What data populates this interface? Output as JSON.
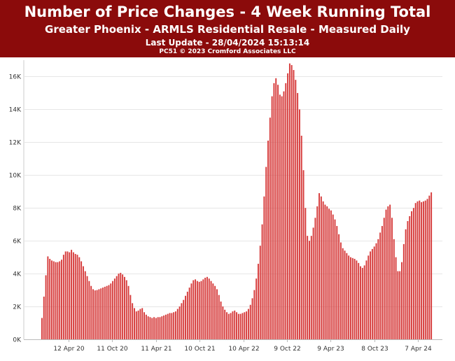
{
  "header": {
    "title": "Number of Price Changes - 4 Week Running Total",
    "subtitle": "Greater Phoenix - ARMLS Residential Resale - Measured Daily",
    "last_update": "Last Update - 28/04/2024 15:13:14",
    "credit": "PC51 © 2023 Cromford Associates LLC"
  },
  "colors": {
    "header_bg": "#8b0b0b",
    "bar_fill": "#d63a3a",
    "bar_edge": "#a31616",
    "grid": "#e6e6e6"
  },
  "chart_data": {
    "type": "bar",
    "title": "Number of Price Changes - 4 Week Running Total",
    "xlabel": "",
    "ylabel": "",
    "ylim": [
      0,
      17000
    ],
    "y_ticks": [
      "0K",
      "2K",
      "4K",
      "6K",
      "8K",
      "10K",
      "12K",
      "14K",
      "16K"
    ],
    "x_ticks": [
      "12 Apr 20",
      "11 Oct 20",
      "11 Apr 21",
      "10 Oct 21",
      "10 Apr 22",
      "9 Oct 22",
      "9 Apr 23",
      "8 Oct 23",
      "7 Apr 24"
    ],
    "grid": true,
    "series": [
      {
        "values": [
          1300,
          2600,
          3900,
          5050,
          4900,
          4800,
          4750,
          4700,
          4700,
          4750,
          4850,
          5150,
          5350,
          5350,
          5300,
          5450,
          5300,
          5200,
          5150,
          5000,
          4750,
          4450,
          4150,
          3850,
          3550,
          3250,
          3050,
          2980,
          3000,
          3050,
          3100,
          3150,
          3200,
          3250,
          3300,
          3400,
          3550,
          3700,
          3850,
          4000,
          4050,
          3950,
          3800,
          3600,
          3250,
          2700,
          2200,
          1900,
          1700,
          1750,
          1850,
          1900,
          1650,
          1500,
          1400,
          1350,
          1300,
          1350,
          1300,
          1350,
          1350,
          1400,
          1450,
          1500,
          1550,
          1600,
          1600,
          1650,
          1700,
          1850,
          2000,
          2200,
          2400,
          2650,
          2900,
          3150,
          3400,
          3600,
          3650,
          3550,
          3500,
          3550,
          3650,
          3750,
          3800,
          3700,
          3550,
          3400,
          3250,
          3050,
          2700,
          2300,
          2000,
          1800,
          1650,
          1550,
          1600,
          1700,
          1750,
          1650,
          1550,
          1550,
          1600,
          1650,
          1700,
          1850,
          2100,
          2500,
          3000,
          3700,
          4600,
          5700,
          7000,
          8700,
          10500,
          12100,
          13500,
          14800,
          15600,
          15900,
          15500,
          14900,
          14800,
          15100,
          15600,
          16200,
          16800,
          16700,
          16400,
          15800,
          15000,
          14000,
          12400,
          10300,
          8000,
          6300,
          6000,
          6300,
          6800,
          7400,
          8100,
          8900,
          8700,
          8400,
          8200,
          8100,
          7950,
          7850,
          7600,
          7300,
          6900,
          6400,
          5900,
          5550,
          5400,
          5250,
          5100,
          5000,
          4950,
          4900,
          4800,
          4650,
          4450,
          4350,
          4500,
          4800,
          5100,
          5350,
          5500,
          5650,
          5850,
          6100,
          6500,
          6900,
          7400,
          7900,
          8100,
          8200,
          7400,
          6100,
          5000,
          4150,
          4150,
          4700,
          5800,
          6700,
          7200,
          7500,
          7800,
          8000,
          8300,
          8400,
          8450,
          8350,
          8400,
          8450,
          8550,
          8750,
          8950
        ]
      }
    ]
  }
}
